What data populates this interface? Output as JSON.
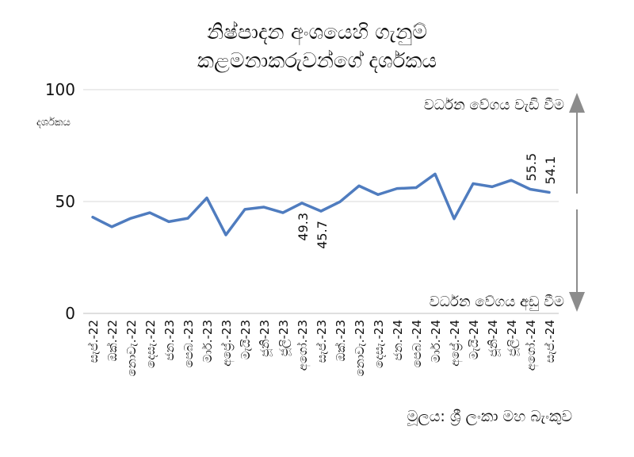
{
  "chart_data": {
    "type": "line",
    "title_line1": "නිෂ්පාදන අංශයෙහි ගැනුම්",
    "title_line2": "කළමනාකරුවන්ගේ දර්ශකය",
    "ylabel": "දර්ශකය",
    "ylim": [
      0,
      100
    ],
    "yticks": [
      "0",
      "50",
      "100"
    ],
    "categories": [
      "සැප්.-22",
      "ඔක්.-22",
      "නොවැ.-22",
      "දෙසැ.-22",
      "ජන.-23",
      "පෙබ.-23",
      "මාර්.-23",
      "අප්‍රේ.-23",
      "මැයි-23",
      "ජූනි-23",
      "ජූලි-23",
      "අගෝ.-23",
      "සැප්.-23",
      "ඔක්.-23",
      "නොවැ.-23",
      "දෙසැ.-23",
      "ජන.-24",
      "පෙබ.-24",
      "මාර්.-24",
      "අප්‍රේ.-24",
      "මැයි-24",
      "ජූනි-24",
      "ජූලි-24",
      "අගෝ.-24",
      "සැප්.-24"
    ],
    "series": [
      {
        "values": [
          43.0,
          38.7,
          42.5,
          45.0,
          41.0,
          42.5,
          51.6,
          35.1,
          46.5,
          47.5,
          45.0,
          49.3,
          45.7,
          49.9,
          57.0,
          53.1,
          55.8,
          56.2,
          62.3,
          42.3,
          58.0,
          56.6,
          59.5,
          55.5,
          54.1
        ],
        "color": "#4f7cbf"
      }
    ],
    "data_labels": [
      {
        "index": 11,
        "text": "49.3"
      },
      {
        "index": 12,
        "text": "45.7"
      },
      {
        "index": 23,
        "text": "55.5"
      },
      {
        "index": 24,
        "text": "54.1"
      }
    ],
    "annotation_up": "වර්ධන වේගය වැඩි වීම",
    "annotation_down": "වර්ධන වේගය අඩු වීම",
    "arrow_color": "#8c8c8c",
    "grid": true,
    "source": "මූලය: ශ්‍රී ලංකා මහ බැංකුව"
  }
}
